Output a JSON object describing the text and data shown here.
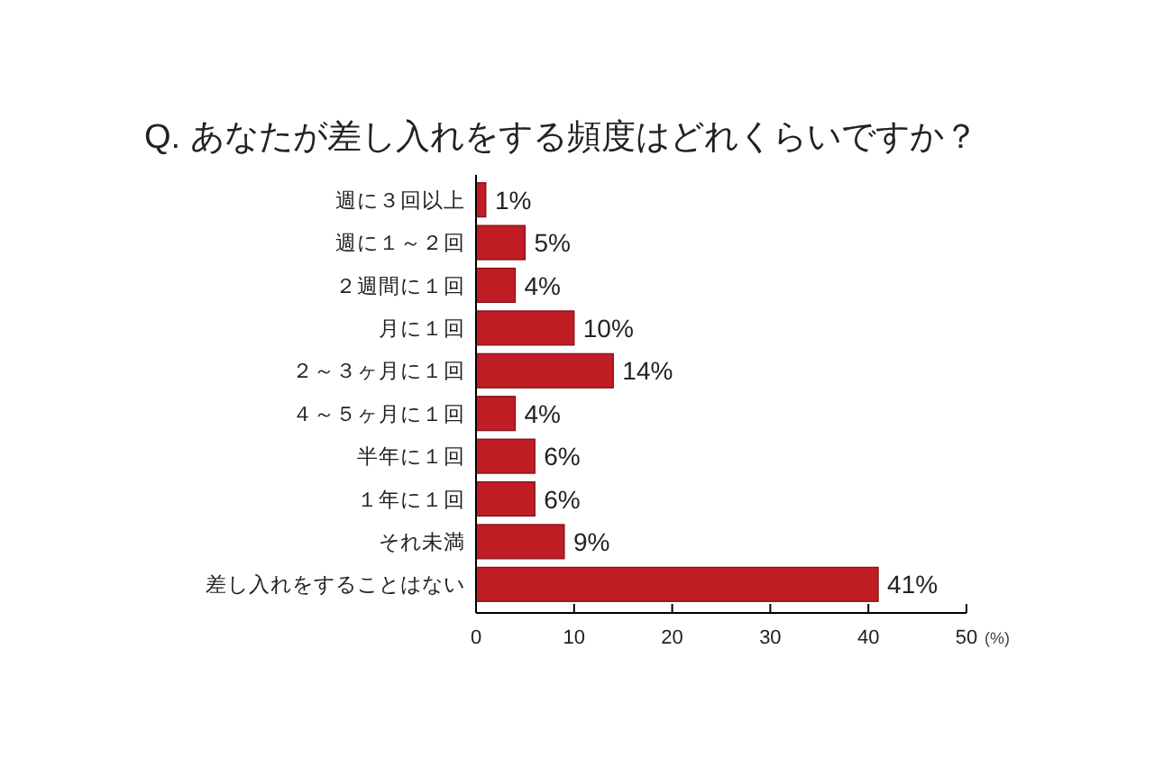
{
  "chart_data": {
    "type": "bar",
    "orientation": "horizontal",
    "title": "Q. あなたが差し入れをする頻度はどれくらいですか？",
    "xlabel": "(%)",
    "categories": [
      "週に３回以上",
      "週に１～２回",
      "２週間に１回",
      "月に１回",
      "２～３ヶ月に１回",
      "４～５ヶ月に１回",
      "半年に１回",
      "１年に１回",
      "それ未満",
      "差し入れをすることはない"
    ],
    "values": [
      1,
      5,
      4,
      10,
      14,
      4,
      6,
      6,
      9,
      41
    ],
    "value_labels": [
      "1%",
      "5%",
      "4%",
      "10%",
      "14%",
      "4%",
      "6%",
      "6%",
      "9%",
      "41%"
    ],
    "color": "#c01d24",
    "xlim": [
      0,
      50
    ],
    "xticks": [
      0,
      10,
      20,
      30,
      40,
      50
    ],
    "grid": false
  }
}
